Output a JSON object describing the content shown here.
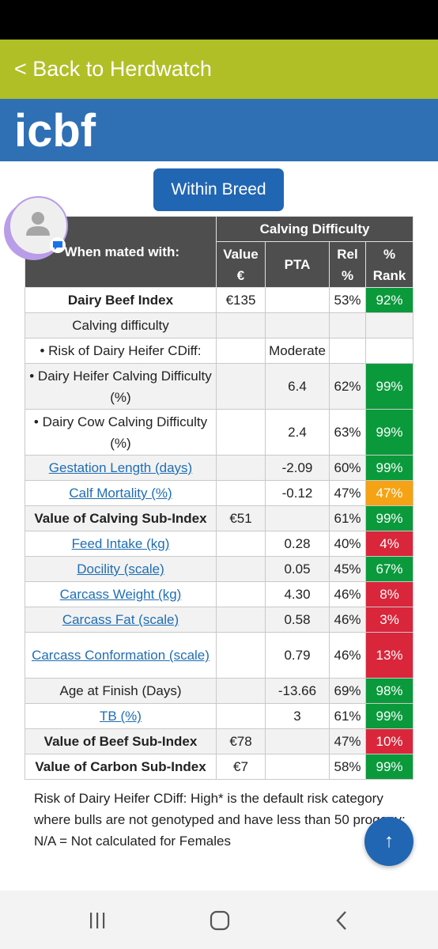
{
  "header": {
    "back_label": "< Back to Herdwatch"
  },
  "brand": {
    "logo_text": "icbf"
  },
  "toggle": {
    "label": "Within Breed"
  },
  "table": {
    "group_header": "Calving Difficulty",
    "row_header_label": "When mated with:",
    "columns": [
      "Value\n€",
      "PTA",
      "Rel\n%",
      "%\nRank"
    ],
    "rows": [
      {
        "trait": "Dairy Beef Index",
        "value": "€135",
        "pta": "",
        "rel": "53%",
        "rank": "92%"
      },
      {
        "trait": "Calving difficulty",
        "value": "",
        "pta": "",
        "rel": "",
        "rank": ""
      },
      {
        "trait": "• Risk of Dairy Heifer CDiff:",
        "value": "",
        "pta": "Moderate",
        "rel": "",
        "rank": ""
      },
      {
        "trait": "• Dairy Heifer Calving Difficulty (%)",
        "value": "",
        "pta": "6.4",
        "rel": "62%",
        "rank": "99%"
      },
      {
        "trait": "• Dairy Cow Calving Difficulty (%)",
        "value": "",
        "pta": "2.4",
        "rel": "63%",
        "rank": "99%"
      },
      {
        "trait": "Gestation Length (days)",
        "value": "",
        "pta": "-2.09",
        "rel": "60%",
        "rank": "99%"
      },
      {
        "trait": "Calf Mortality (%)",
        "value": "",
        "pta": "-0.12",
        "rel": "47%",
        "rank": "47%"
      },
      {
        "trait": "Value of Calving Sub-Index",
        "value": "€51",
        "pta": "",
        "rel": "61%",
        "rank": "99%"
      },
      {
        "trait": "Feed Intake (kg)",
        "value": "",
        "pta": "0.28",
        "rel": "40%",
        "rank": "4%"
      },
      {
        "trait": "Docility (scale)",
        "value": "",
        "pta": "0.05",
        "rel": "45%",
        "rank": "67%"
      },
      {
        "trait": "Carcass Weight (kg)",
        "value": "",
        "pta": "4.30",
        "rel": "46%",
        "rank": "8%"
      },
      {
        "trait": "Carcass Fat (scale)",
        "value": "",
        "pta": "0.58",
        "rel": "46%",
        "rank": "3%"
      },
      {
        "trait": "Carcass Conformation (scale)",
        "value": "",
        "pta": "0.79",
        "rel": "46%",
        "rank": "13%"
      },
      {
        "trait": "Age at Finish (Days)",
        "value": "",
        "pta": "-13.66",
        "rel": "69%",
        "rank": "98%"
      },
      {
        "trait": "TB (%)",
        "value": "",
        "pta": "3",
        "rel": "61%",
        "rank": "99%"
      },
      {
        "trait": "Value of Beef Sub-Index",
        "value": "€78",
        "pta": "",
        "rel": "47%",
        "rank": "10%"
      },
      {
        "trait": "Value of Carbon Sub-Index",
        "value": "€7",
        "pta": "",
        "rel": "58%",
        "rank": "99%"
      }
    ]
  },
  "footnote": "Risk of Dairy Heifer CDiff: High* is the default risk category where bulls are not genotyped and have less than 50 progeny; N/A = Not calculated for Females",
  "fab": {
    "icon": "arrow-up-icon",
    "glyph": "↑"
  },
  "colors": {
    "green": "#0a9a3c",
    "red": "#d9263a",
    "orange": "#f5a214",
    "header_bar": "#b0bf25",
    "brand_bar": "#2f6fb4"
  },
  "nav": {
    "recents_glyph": "|||",
    "home_glyph": "○",
    "back_glyph": "<"
  }
}
